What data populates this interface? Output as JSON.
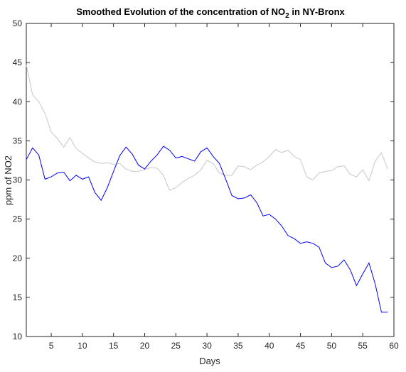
{
  "chart_data": {
    "type": "line",
    "title": "Smoothed Evolution of the concentration of NO",
    "title_subscript": "2",
    "title_suffix": " in NY-Bronx",
    "xlabel": "Days",
    "ylabel": "ppm of NO2",
    "xlim": [
      1,
      60
    ],
    "ylim": [
      10,
      50
    ],
    "xticks": [
      5,
      10,
      15,
      20,
      25,
      30,
      35,
      40,
      45,
      50,
      55,
      60
    ],
    "yticks": [
      10,
      15,
      20,
      25,
      30,
      35,
      40,
      45,
      50
    ],
    "grid": false,
    "x": [
      1,
      2,
      3,
      4,
      5,
      6,
      7,
      8,
      9,
      10,
      11,
      12,
      13,
      14,
      15,
      16,
      17,
      18,
      19,
      20,
      21,
      22,
      23,
      24,
      25,
      26,
      27,
      28,
      29,
      30,
      31,
      32,
      33,
      34,
      35,
      36,
      37,
      38,
      39,
      40,
      41,
      42,
      43,
      44,
      45,
      46,
      47,
      48,
      49,
      50,
      51,
      52,
      53,
      54,
      55,
      56,
      57,
      58,
      59
    ],
    "series": [
      {
        "color": "#0000ff",
        "values": [
          32.6,
          34.1,
          33.2,
          30.1,
          30.4,
          30.9,
          31.0,
          29.9,
          30.6,
          30.1,
          30.4,
          28.4,
          27.4,
          29.0,
          31.1,
          33.1,
          34.2,
          33.3,
          31.9,
          31.4,
          32.4,
          33.2,
          34.3,
          33.8,
          32.8,
          33.0,
          32.7,
          32.4,
          33.6,
          34.1,
          33.0,
          32.1,
          30.1,
          28.0,
          27.6,
          27.7,
          28.1,
          27.1,
          25.4,
          25.6,
          25.0,
          24.1,
          22.9,
          22.5,
          21.9,
          22.1,
          21.9,
          21.4,
          19.4,
          18.8,
          19.0,
          19.8,
          18.5,
          16.5,
          18.0,
          19.4,
          16.7,
          13.1,
          13.1
        ]
      },
      {
        "color": "#c8c8c8",
        "values": [
          44.7,
          40.9,
          40.0,
          38.5,
          36.1,
          35.3,
          34.2,
          35.4,
          34.0,
          33.4,
          32.8,
          32.3,
          32.1,
          32.2,
          32.0,
          32.1,
          31.4,
          31.1,
          31.1,
          31.3,
          31.6,
          31.5,
          30.6,
          28.7,
          29.0,
          29.7,
          30.2,
          30.6,
          31.3,
          32.5,
          32.1,
          30.9,
          30.6,
          30.6,
          31.8,
          31.7,
          31.3,
          31.9,
          32.3,
          33.0,
          33.9,
          33.5,
          33.8,
          33.0,
          32.6,
          30.4,
          30.0,
          30.9,
          31.1,
          31.2,
          31.7,
          31.8,
          30.7,
          30.4,
          31.3,
          29.9,
          32.4,
          33.5,
          31.4
        ]
      }
    ]
  }
}
